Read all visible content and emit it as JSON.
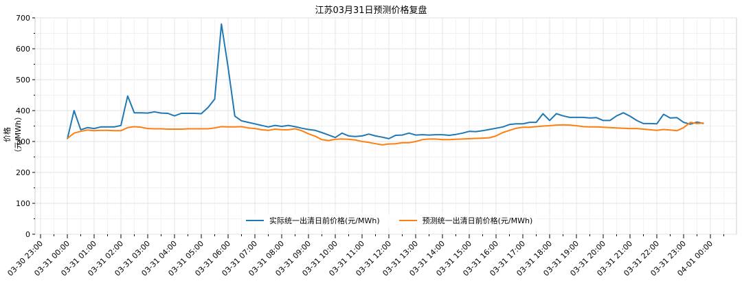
{
  "chart_data": {
    "type": "line",
    "title": "江苏03月31日预测价格复盘",
    "xlabel": "",
    "ylabel": "价格（元/MWh）",
    "ylim": [
      0,
      700
    ],
    "yticks": [
      0,
      100,
      200,
      300,
      400,
      500,
      600,
      700
    ],
    "xticks": [
      "03-30 23:00",
      "03-31 00:00",
      "03-31 01:00",
      "03-31 02:00",
      "03-31 03:00",
      "03-31 04:00",
      "03-31 05:00",
      "03-31 06:00",
      "03-31 07:00",
      "03-31 08:00",
      "03-31 09:00",
      "03-31 10:00",
      "03-31 11:00",
      "03-31 12:00",
      "03-31 13:00",
      "03-31 14:00",
      "03-31 15:00",
      "03-31 16:00",
      "03-31 17:00",
      "03-31 18:00",
      "03-31 19:00",
      "03-31 20:00",
      "03-31 21:00",
      "03-31 22:00",
      "03-31 23:00",
      "04-01 00:00"
    ],
    "grid": true,
    "legend_position": "lower center",
    "x_interval_minutes": 15,
    "x_start": "03-31 00:00",
    "series": [
      {
        "name": "实际统一出清日前价格(元/MWh)",
        "color": "#1f77b4",
        "values": [
          308,
          400,
          338,
          345,
          342,
          347,
          347,
          347,
          352,
          447,
          393,
          393,
          392,
          396,
          392,
          391,
          383,
          391,
          391,
          391,
          390,
          410,
          437,
          680,
          540,
          382,
          367,
          362,
          357,
          352,
          347,
          352,
          349,
          352,
          348,
          343,
          339,
          336,
          329,
          321,
          313,
          327,
          318,
          316,
          318,
          324,
          318,
          314,
          309,
          320,
          321,
          327,
          321,
          322,
          321,
          322,
          322,
          320,
          323,
          327,
          333,
          332,
          335,
          339,
          343,
          347,
          355,
          357,
          357,
          362,
          362,
          390,
          368,
          390,
          383,
          378,
          378,
          378,
          376,
          377,
          368,
          368,
          383,
          393,
          382,
          368,
          358,
          358,
          357,
          388,
          376,
          377,
          362,
          356,
          363,
          358
        ]
      },
      {
        "name": "预测统一出清日前价格(元/MWh)",
        "color": "#ff7f0e",
        "values": [
          310,
          327,
          333,
          337,
          335,
          336,
          336,
          335,
          335,
          345,
          348,
          346,
          342,
          341,
          341,
          340,
          340,
          340,
          341,
          341,
          341,
          341,
          344,
          348,
          347,
          347,
          348,
          344,
          342,
          338,
          336,
          340,
          338,
          338,
          341,
          335,
          325,
          317,
          306,
          303,
          307,
          308,
          307,
          305,
          300,
          297,
          293,
          289,
          292,
          293,
          296,
          296,
          300,
          306,
          308,
          308,
          306,
          306,
          307,
          308,
          309,
          310,
          311,
          312,
          318,
          329,
          336,
          343,
          346,
          346,
          348,
          350,
          351,
          353,
          354,
          353,
          351,
          348,
          347,
          347,
          346,
          345,
          344,
          343,
          342,
          342,
          340,
          338,
          336,
          339,
          337,
          335,
          345,
          362,
          358,
          360
        ]
      }
    ]
  }
}
